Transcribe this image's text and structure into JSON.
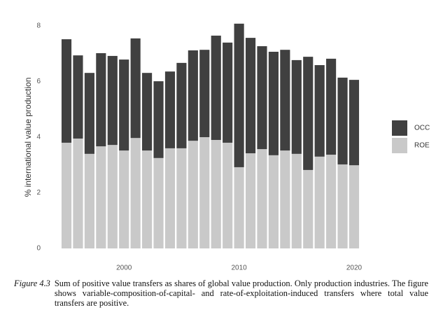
{
  "chart_data": {
    "type": "stacked-bar",
    "y_label": "% international value production",
    "x": [
      1995,
      1996,
      1997,
      1998,
      1999,
      2000,
      2001,
      2002,
      2003,
      2004,
      2005,
      2006,
      2007,
      2008,
      2009,
      2010,
      2011,
      2012,
      2013,
      2014,
      2015,
      2016,
      2017,
      2018,
      2019,
      2020
    ],
    "series": [
      {
        "name": "OCC",
        "color": "#404040",
        "values": [
          3.72,
          2.99,
          2.91,
          3.35,
          3.2,
          3.27,
          3.58,
          2.79,
          2.76,
          2.76,
          3.07,
          3.25,
          3.14,
          3.75,
          3.6,
          5.16,
          4.15,
          3.7,
          3.72,
          3.62,
          3.37,
          4.07,
          3.29,
          3.45,
          3.12,
          3.07
        ]
      },
      {
        "name": "ROE",
        "color": "#c9c9c9",
        "values": [
          3.8,
          3.95,
          3.4,
          3.67,
          3.72,
          3.52,
          3.97,
          3.52,
          3.25,
          3.6,
          3.6,
          3.87,
          4.0,
          3.9,
          3.8,
          2.92,
          3.42,
          3.57,
          3.35,
          3.52,
          3.4,
          2.82,
          3.3,
          3.37,
          3.02,
          2.99
        ]
      }
    ],
    "xlim": [
      1994.5,
      2020.5
    ],
    "xticks": [
      2000,
      2010,
      2020
    ],
    "ylim": [
      0,
      8.2
    ],
    "yticks": [
      0,
      2,
      4,
      6,
      8
    ],
    "grid": false,
    "legend": "right"
  },
  "caption": {
    "label": "Figure 4.3",
    "text": "Sum of positive value transfers as shares of global value production. Only production industries. The figure shows variable-composition-of-capital- and rate-of-exploitation-induced transfers where total value transfers are positive."
  }
}
